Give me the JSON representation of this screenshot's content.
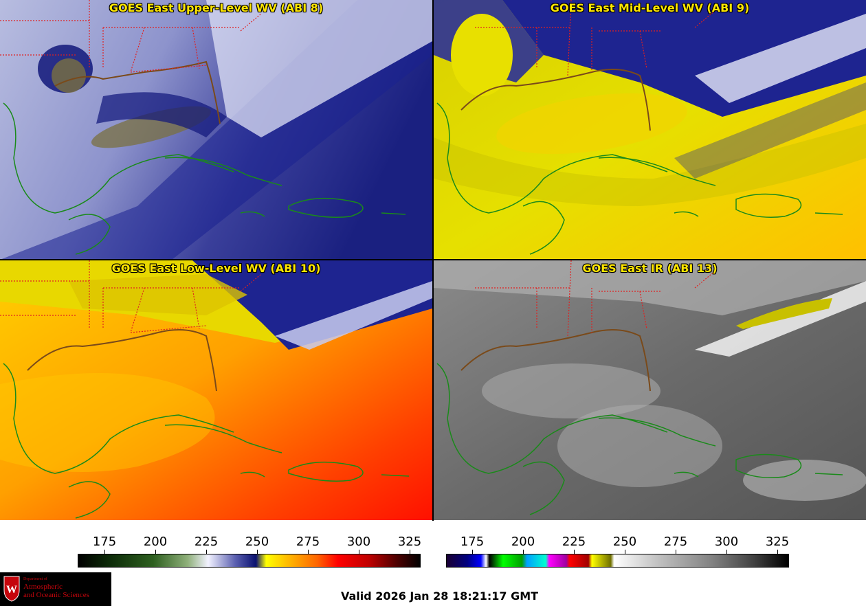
{
  "panels": [
    {
      "title": "GOES East Upper-Level WV (ABI 8)"
    },
    {
      "title": "GOES East Mid-Level WV (ABI 9)"
    },
    {
      "title": "GOES East Low-Level WV (ABI 10)"
    },
    {
      "title": "GOES East IR (ABI 13)"
    }
  ],
  "colorbars": {
    "wv_ticks": [
      "175",
      "200",
      "225",
      "250",
      "275",
      "300",
      "325"
    ],
    "ir_ticks": [
      "175",
      "200",
      "225",
      "250",
      "275",
      "300",
      "325"
    ]
  },
  "logo": {
    "dept_line": "Department of",
    "line1": "Atmospheric",
    "line2": "and Oceanic Sciences",
    "seal_letter": "W"
  },
  "valid_time": "Valid 2026 Jan 28 18:21:17 GMT",
  "colors": {
    "title_text": "#ffe600",
    "state_border": "#e02020",
    "coastline": "#1a8a1a",
    "logo_red": "#c5050c"
  }
}
